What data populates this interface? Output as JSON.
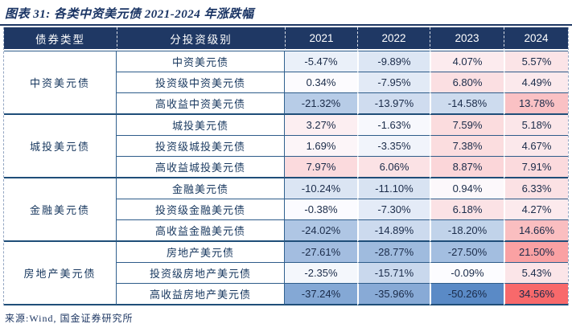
{
  "chart_data": {
    "type": "table",
    "title": "图表 31: 各类中资美元债 2021-2024 年涨跌幅",
    "source": "来源:Wind, 国金证券研究所",
    "value_unit": "%",
    "columns": [
      "债券类型",
      "分投资级别",
      "2021",
      "2022",
      "2023",
      "2024"
    ],
    "groups": [
      {
        "type": "中资美元债",
        "rows": [
          {
            "label": "中资美元债",
            "values": [
              -5.47,
              -9.89,
              4.07,
              5.57
            ]
          },
          {
            "label": "投资级中资美元债",
            "values": [
              0.34,
              -7.95,
              6.8,
              4.49
            ]
          },
          {
            "label": "高收益中资美元债",
            "values": [
              -21.32,
              -13.97,
              -14.58,
              13.78
            ]
          }
        ]
      },
      {
        "type": "城投美元债",
        "rows": [
          {
            "label": "城投美元债",
            "values": [
              3.27,
              -1.63,
              7.59,
              5.18
            ]
          },
          {
            "label": "投资级城投美元债",
            "values": [
              1.69,
              -3.35,
              7.38,
              4.67
            ]
          },
          {
            "label": "高收益城投美元债",
            "values": [
              7.97,
              6.06,
              8.87,
              7.91
            ]
          }
        ]
      },
      {
        "type": "金融美元债",
        "rows": [
          {
            "label": "金融美元债",
            "values": [
              -10.24,
              -11.1,
              0.94,
              6.33
            ]
          },
          {
            "label": "投资级金融美元债",
            "values": [
              -0.38,
              -7.3,
              6.18,
              4.27
            ]
          },
          {
            "label": "高收益金融美元债",
            "values": [
              -24.02,
              -14.89,
              -18.2,
              14.66
            ]
          }
        ]
      },
      {
        "type": "房地产美元债",
        "rows": [
          {
            "label": "房地产美元债",
            "values": [
              -27.61,
              -28.77,
              -27.5,
              21.5
            ]
          },
          {
            "label": "投资级房地产美元债",
            "values": [
              -2.35,
              -15.71,
              -0.09,
              5.43
            ]
          },
          {
            "label": "高收益房地产美元债",
            "values": [
              -37.24,
              -35.96,
              -50.26,
              34.56
            ]
          }
        ]
      }
    ],
    "heatmap": {
      "min_color": "#5A8AC6",
      "mid_color": "#FCFCFF",
      "max_color": "#F8696B",
      "domain_min": -50.26,
      "domain_mid": 0,
      "domain_max": 34.56
    },
    "colors": {
      "header_bg": "#1F3864",
      "header_text": "#FFFFFF",
      "title_text": "#1A3464",
      "grid_line": "#2E5C8A",
      "group_line": "#1F4E79"
    }
  }
}
